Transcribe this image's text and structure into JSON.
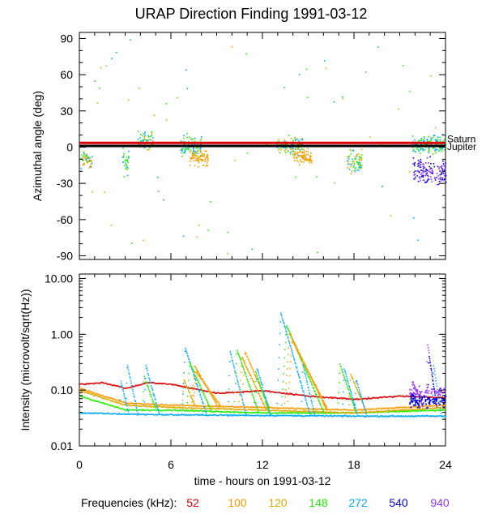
{
  "chart_data": {
    "type": "scatter",
    "title": "URAP Direction Finding  1991-03-12",
    "xlabel": "time - hours on 1991-03-12",
    "x_ticks": [
      "0",
      "6",
      "12",
      "18",
      "24"
    ],
    "xlim": [
      0,
      24
    ],
    "legend": {
      "label": "Frequencies (kHz):",
      "placement": "bottom",
      "entries": [
        {
          "name": "52",
          "color": "#dd0000"
        },
        {
          "name": "100",
          "color": "#ff9900"
        },
        {
          "name": "120",
          "color": "#ddaa00"
        },
        {
          "name": "148",
          "color": "#22ee00"
        },
        {
          "name": "272",
          "color": "#00aaff"
        },
        {
          "name": "540",
          "color": "#0000dd"
        },
        {
          "name": "940",
          "color": "#9933ff"
        }
      ]
    },
    "panels": [
      {
        "id": "azimuth",
        "ylabel": "Azimuthal angle (deg)",
        "ylim": [
          -93,
          95
        ],
        "y_ticks": [
          "90",
          "60",
          "30",
          "0",
          "-30",
          "-60",
          "-90"
        ],
        "reference_lines": [
          {
            "name": "Saturn",
            "value": 3.5,
            "color": "#dd0000"
          },
          {
            "name": "Jupiter",
            "value": 1.0,
            "color": "#000000"
          }
        ],
        "clusters": [
          {
            "t": [
              0.0,
              0.8
            ],
            "center": -10,
            "spread": 6,
            "freqs": [
              "100",
              "120",
              "148",
              "272"
            ]
          },
          {
            "t": [
              2.8,
              3.2
            ],
            "center": -12,
            "spread": 10,
            "freqs": [
              "148",
              "272"
            ]
          },
          {
            "t": [
              3.8,
              4.8
            ],
            "center": 5,
            "spread": 8,
            "freqs": [
              "120",
              "148",
              "272"
            ]
          },
          {
            "t": [
              6.6,
              8.0
            ],
            "center": 2,
            "spread": 7,
            "freqs": [
              "148",
              "272"
            ]
          },
          {
            "t": [
              7.2,
              8.4
            ],
            "center": -8,
            "spread": 6,
            "freqs": [
              "100",
              "120"
            ]
          },
          {
            "t": [
              12.9,
              14.6
            ],
            "center": 2,
            "spread": 6,
            "freqs": [
              "120",
              "148",
              "272"
            ]
          },
          {
            "t": [
              14.0,
              15.2
            ],
            "center": -8,
            "spread": 6,
            "freqs": [
              "100",
              "120"
            ]
          },
          {
            "t": [
              17.5,
              18.5
            ],
            "center": -12,
            "spread": 9,
            "freqs": [
              "120",
              "148",
              "272"
            ]
          },
          {
            "t": [
              21.8,
              24.0
            ],
            "center": -20,
            "spread": 9,
            "freqs": [
              "940",
              "540"
            ]
          },
          {
            "t": [
              21.8,
              24.0
            ],
            "center": 3,
            "spread": 6,
            "freqs": [
              "272",
              "148"
            ]
          }
        ]
      },
      {
        "id": "intensity",
        "ylabel": "Intensity (microvolt/sqrt(Hz))",
        "ylog": true,
        "ylim": [
          0.01,
          12
        ],
        "y_ticks": [
          "10.00",
          "1.00",
          "0.10",
          "0.01"
        ],
        "baselines": [
          {
            "freq": "52",
            "points": [
              [
                0,
                0.13
              ],
              [
                1.5,
                0.14
              ],
              [
                3,
                0.11
              ],
              [
                4.5,
                0.14
              ],
              [
                6,
                0.13
              ],
              [
                9,
                0.09
              ],
              [
                12,
                0.1
              ],
              [
                15,
                0.08
              ],
              [
                18,
                0.07
              ],
              [
                21,
                0.08
              ],
              [
                24,
                0.075
              ]
            ]
          },
          {
            "freq": "100",
            "points": [
              [
                0,
                0.11
              ],
              [
                3,
                0.06
              ],
              [
                6,
                0.055
              ],
              [
                12,
                0.05
              ],
              [
                18,
                0.045
              ],
              [
                24,
                0.055
              ]
            ]
          },
          {
            "freq": "120",
            "points": [
              [
                0,
                0.1
              ],
              [
                3,
                0.055
              ],
              [
                6,
                0.05
              ],
              [
                12,
                0.045
              ],
              [
                18,
                0.04
              ],
              [
                24,
                0.05
              ]
            ]
          },
          {
            "freq": "148",
            "points": [
              [
                0,
                0.08
              ],
              [
                3,
                0.045
              ],
              [
                6,
                0.045
              ],
              [
                12,
                0.04
              ],
              [
                18,
                0.04
              ],
              [
                24,
                0.045
              ]
            ]
          },
          {
            "freq": "272",
            "points": [
              [
                0,
                0.04
              ],
              [
                3,
                0.038
              ],
              [
                6,
                0.037
              ],
              [
                12,
                0.036
              ],
              [
                18,
                0.035
              ],
              [
                24,
                0.035
              ]
            ]
          }
        ],
        "bursts": [
          {
            "freq": "272",
            "start": 2.6,
            "peak": 0.15,
            "decay": 0.6
          },
          {
            "freq": "272",
            "start": 3.0,
            "peak": 0.3,
            "decay": 0.8
          },
          {
            "freq": "148",
            "start": 4.1,
            "peak": 0.18,
            "decay": 0.9
          },
          {
            "freq": "272",
            "start": 4.2,
            "peak": 0.28,
            "decay": 1.0
          },
          {
            "freq": "120",
            "start": 6.7,
            "peak": 0.16,
            "decay": 0.9
          },
          {
            "freq": "272",
            "start": 6.7,
            "peak": 0.6,
            "decay": 1.6
          },
          {
            "freq": "148",
            "start": 7.0,
            "peak": 0.32,
            "decay": 1.6
          },
          {
            "freq": "120",
            "start": 7.3,
            "peak": 0.28,
            "decay": 1.8
          },
          {
            "freq": "100",
            "start": 7.4,
            "peak": 0.22,
            "decay": 1.8
          },
          {
            "freq": "272",
            "start": 9.7,
            "peak": 0.5,
            "decay": 1.2
          },
          {
            "freq": "148",
            "start": 10.1,
            "peak": 0.55,
            "decay": 1.6
          },
          {
            "freq": "120",
            "start": 10.4,
            "peak": 0.4,
            "decay": 1.8
          },
          {
            "freq": "100",
            "start": 10.6,
            "peak": 0.5,
            "decay": 1.8
          },
          {
            "freq": "148",
            "start": 11.4,
            "peak": 0.22,
            "decay": 1.0
          },
          {
            "freq": "272",
            "start": 11.5,
            "peak": 0.25,
            "decay": 1.0
          },
          {
            "freq": "272",
            "start": 12.9,
            "peak": 2.5,
            "decay": 2.2
          },
          {
            "freq": "148",
            "start": 13.2,
            "peak": 1.5,
            "decay": 2.8
          },
          {
            "freq": "120",
            "start": 13.4,
            "peak": 1.1,
            "decay": 2.8
          },
          {
            "freq": "100",
            "start": 13.6,
            "peak": 0.8,
            "decay": 2.6
          },
          {
            "freq": "272",
            "start": 14.5,
            "peak": 0.3,
            "decay": 0.9
          },
          {
            "freq": "148",
            "start": 16.9,
            "peak": 0.3,
            "decay": 1.2
          },
          {
            "freq": "272",
            "start": 17.2,
            "peak": 0.25,
            "decay": 1.0
          },
          {
            "freq": "120",
            "start": 17.6,
            "peak": 0.2,
            "decay": 1.2
          },
          {
            "freq": "272",
            "start": 18.0,
            "peak": 0.16,
            "decay": 0.8
          },
          {
            "freq": "940",
            "start": 21.7,
            "peak": 0.15,
            "decay": 0.8
          },
          {
            "freq": "540",
            "start": 21.7,
            "peak": 0.09,
            "decay": 0.6
          },
          {
            "freq": "940",
            "start": 22.7,
            "peak": 0.7,
            "decay": 0.7
          },
          {
            "freq": "540",
            "start": 22.8,
            "peak": 0.45,
            "decay": 0.6
          },
          {
            "freq": "272",
            "start": 23.1,
            "peak": 0.3,
            "decay": 0.6
          }
        ]
      }
    ]
  }
}
